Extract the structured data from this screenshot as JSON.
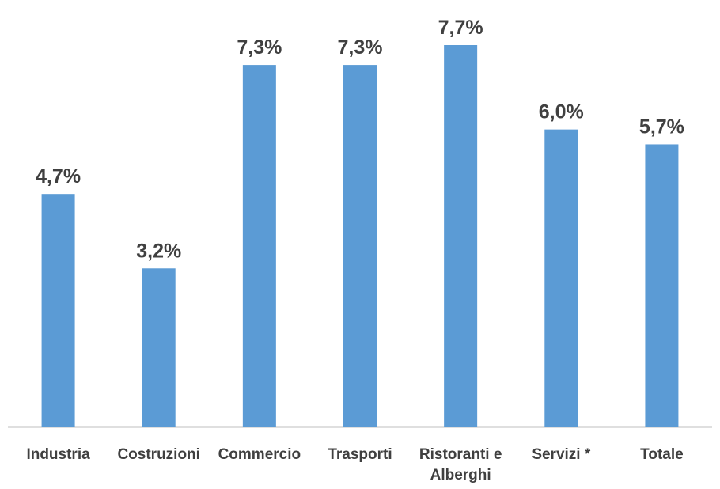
{
  "chart_data": {
    "type": "bar",
    "categories": [
      "Industria",
      "Costruzioni",
      "Commercio",
      "Trasporti",
      "Ristoranti e Alberghi",
      "Servizi *",
      "Totale"
    ],
    "values": [
      4.7,
      3.2,
      7.3,
      7.3,
      7.7,
      6.0,
      5.7
    ],
    "value_labels": [
      "4,7%",
      "3,2%",
      "7,3%",
      "7,3%",
      "7,7%",
      "6,0%",
      "5,7%"
    ],
    "color": "#5b9bd5"
  }
}
